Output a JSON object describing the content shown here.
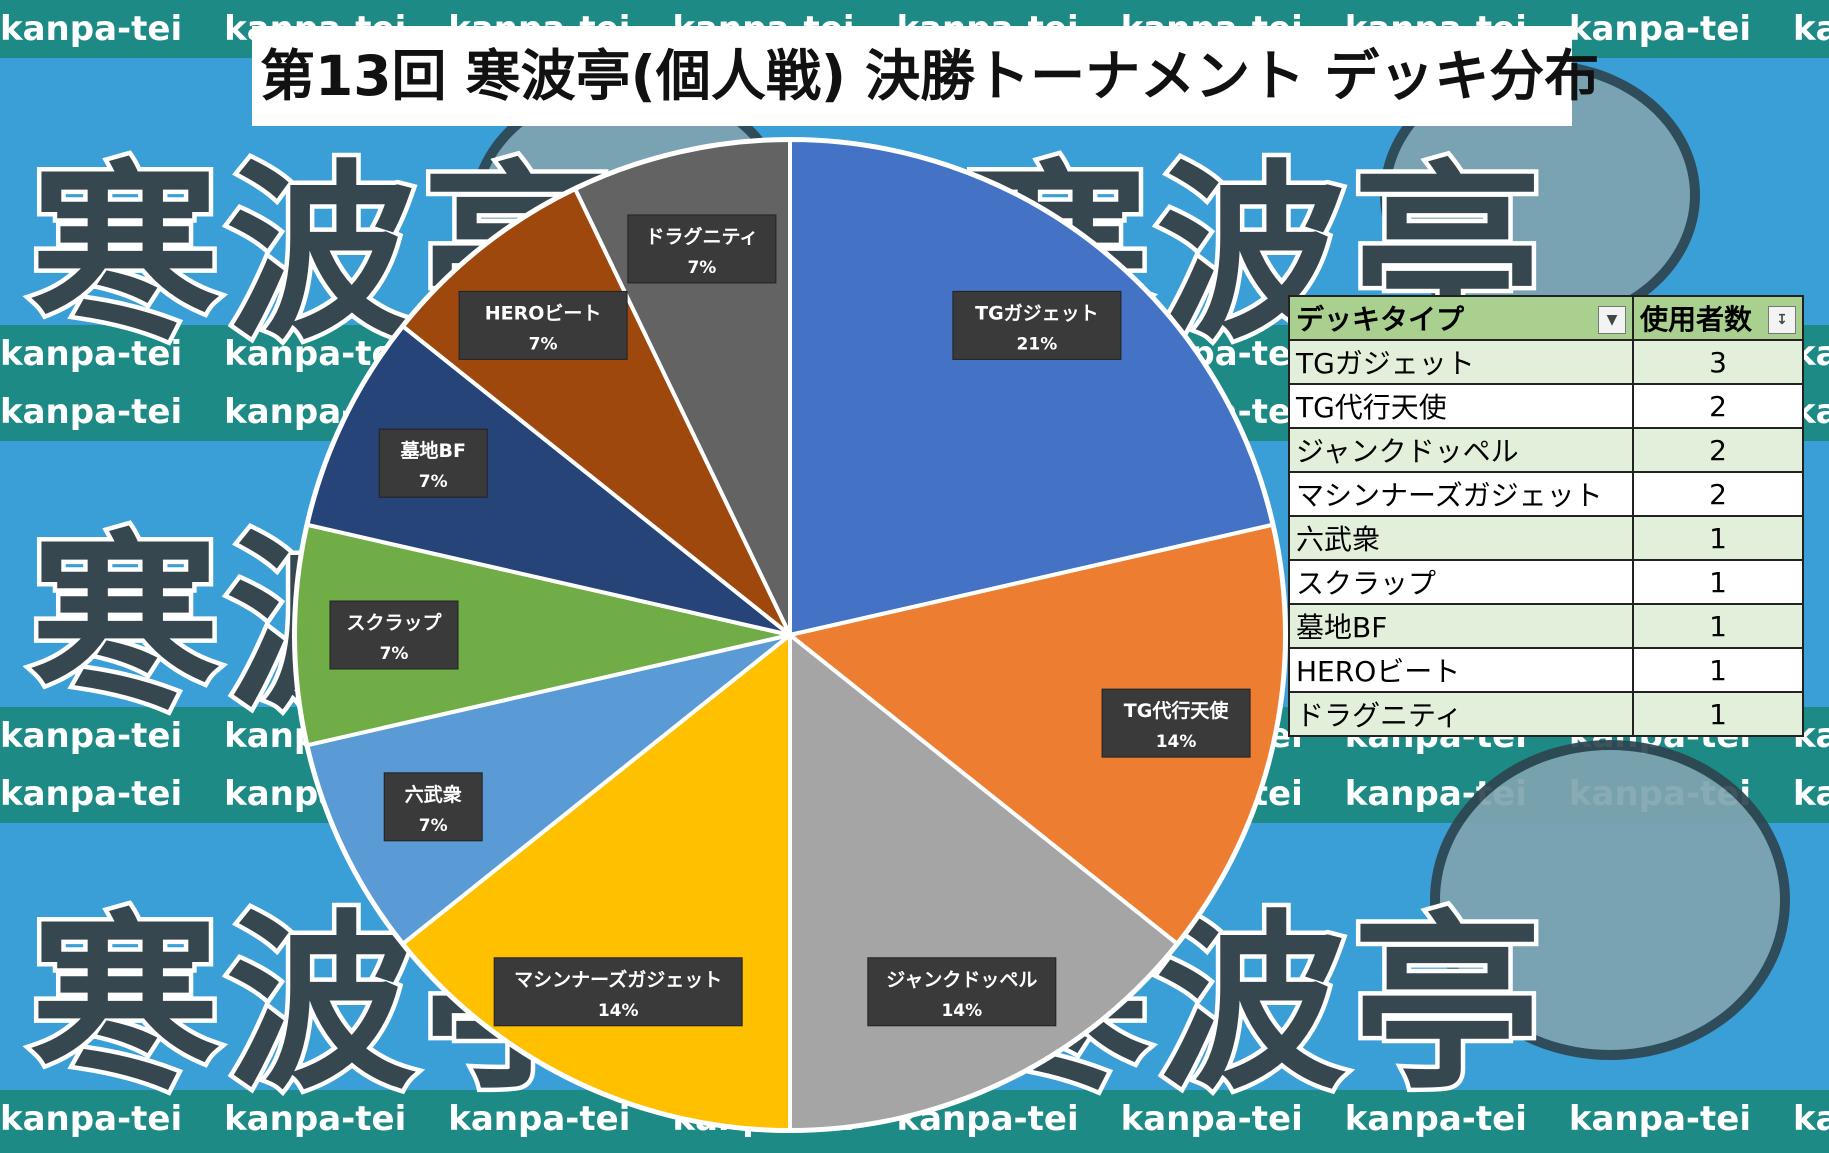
{
  "title": "第13回 寒波亭(個人戦) 決勝トーナメント デッキ分布",
  "background": {
    "watermark_word": "kanpa-tei",
    "big_text": "寒波亭"
  },
  "colors": {
    "band": "#1d8a86",
    "sky": "#3a9fd6",
    "label_bg": "#3a3a3a"
  },
  "chart_data": {
    "type": "pie",
    "title": "第13回 寒波亭(個人戦) 決勝トーナメント デッキ分布",
    "slices": [
      {
        "label": "TGガジェット",
        "value": 3,
        "pct": "21%",
        "color": "#4472c4"
      },
      {
        "label": "TG代行天使",
        "value": 2,
        "pct": "14%",
        "color": "#ed7d31"
      },
      {
        "label": "ジャンクドッペル",
        "value": 2,
        "pct": "14%",
        "color": "#a5a5a5"
      },
      {
        "label": "マシンナーズガジェット",
        "value": 2,
        "pct": "14%",
        "color": "#ffc000"
      },
      {
        "label": "六武衆",
        "value": 1,
        "pct": "7%",
        "color": "#5b9bd5"
      },
      {
        "label": "スクラップ",
        "value": 1,
        "pct": "7%",
        "color": "#70ad47"
      },
      {
        "label": "墓地BF",
        "value": 1,
        "pct": "7%",
        "color": "#264478"
      },
      {
        "label": "HEROビート",
        "value": 1,
        "pct": "7%",
        "color": "#9e480e"
      },
      {
        "label": "ドラグニティ",
        "value": 1,
        "pct": "7%",
        "color": "#636363"
      }
    ]
  },
  "table": {
    "headers": [
      "デッキタイプ",
      "使用者数"
    ],
    "filter_icon": "filter-dropdown-icon",
    "sort_icon": "sort-descending-icon",
    "rows": [
      {
        "name": "TGガジェット",
        "count": "3"
      },
      {
        "name": "TG代行天使",
        "count": "2"
      },
      {
        "name": "ジャンクドッペル",
        "count": "2"
      },
      {
        "name": "マシンナーズガジェット",
        "count": "2"
      },
      {
        "name": "六武衆",
        "count": "1"
      },
      {
        "name": "スクラップ",
        "count": "1"
      },
      {
        "name": "墓地BF",
        "count": "1"
      },
      {
        "name": "HEROビート",
        "count": "1"
      },
      {
        "name": "ドラグニティ",
        "count": "1"
      }
    ]
  }
}
